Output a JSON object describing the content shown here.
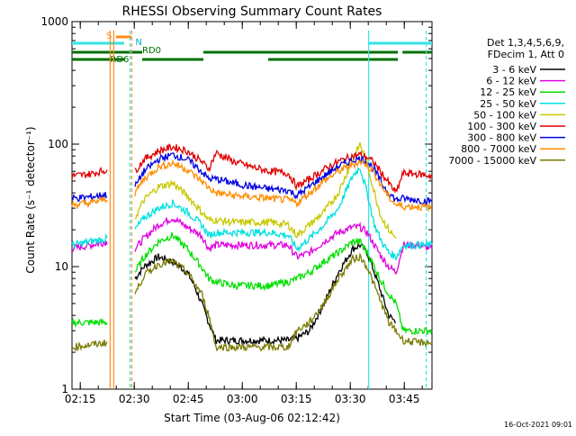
{
  "chart_data": {
    "type": "line",
    "title": "RHESSI Observing Summary Count Rates",
    "xlabel": "Start Time (03-Aug-06 02:12:42)",
    "ylabel": "Count Rate (s⁻¹ detector⁻¹)",
    "yscale": "log",
    "ylim": [
      1,
      1000
    ],
    "xlim_minutes": [
      0,
      100
    ],
    "x_ticks": [
      {
        "minute": 2.3,
        "label": "02:15"
      },
      {
        "minute": 17.3,
        "label": "02:30"
      },
      {
        "minute": 32.3,
        "label": "02:45"
      },
      {
        "minute": 47.3,
        "label": "03:00"
      },
      {
        "minute": 62.3,
        "label": "03:15"
      },
      {
        "minute": 77.3,
        "label": "03:30"
      },
      {
        "minute": 92.3,
        "label": "03:45"
      }
    ],
    "y_ticks": [
      {
        "value": 1,
        "label": "1"
      },
      {
        "value": 10,
        "label": "10"
      },
      {
        "value": 100,
        "label": "100"
      },
      {
        "value": 1000,
        "label": "1000"
      }
    ],
    "legend": {
      "header": [
        "Det 1,3,4,5,6,9,",
        "FDecim 1, Att 0"
      ],
      "placement": "right"
    },
    "annotations": {
      "s_label": "S",
      "n_label": "N",
      "rd0_label": "RD0",
      "rd6_label": "RD6",
      "timestamp": "16-Oct-2021 09:01"
    },
    "status_bars": {
      "saa": [
        {
          "start": 0,
          "end": 14.5
        },
        {
          "start": 82.4,
          "end": 100
        }
      ],
      "flag_s": [
        {
          "start": 12.2,
          "end": 16.5
        }
      ],
      "night": [
        {
          "start": 0,
          "end": 19.5
        },
        {
          "start": 36.5,
          "end": 54.5
        },
        {
          "start": 54.5,
          "end": 90.5
        },
        {
          "start": 91.8,
          "end": 100
        }
      ],
      "night_low": [
        {
          "start": 0,
          "end": 14.5
        },
        {
          "start": 19.5,
          "end": 36.5
        },
        {
          "start": 54.5,
          "end": 62.5
        },
        {
          "start": 62.5,
          "end": 90.5
        }
      ]
    },
    "vertical_markers": [
      {
        "minute": 11.6,
        "color": "#ff8c1a",
        "style": "solid"
      },
      {
        "minute": 10.6,
        "color": "#ff8c1a",
        "style": "solid"
      },
      {
        "minute": 16.1,
        "color": "#33e6e6",
        "style": "dashed"
      },
      {
        "minute": 16.6,
        "color": "#ff8c1a",
        "style": "dashed"
      },
      {
        "minute": 82.4,
        "color": "#33e6e6",
        "style": "solid"
      },
      {
        "minute": 98.4,
        "color": "#33e6e6",
        "style": "dashed"
      }
    ],
    "series": [
      {
        "name": "3 - 6 keV",
        "color": "#000000",
        "points": [
          [
            17.5,
            8
          ],
          [
            20,
            10
          ],
          [
            24,
            12
          ],
          [
            28,
            11
          ],
          [
            32,
            9
          ],
          [
            34,
            7
          ],
          [
            36,
            5
          ],
          [
            38,
            3.5
          ],
          [
            40,
            2.5
          ],
          [
            45,
            2.5
          ],
          [
            50,
            2.5
          ],
          [
            55,
            2.5
          ],
          [
            60,
            2.5
          ],
          [
            62.5,
            2.6
          ],
          [
            66,
            3
          ],
          [
            70,
            5
          ],
          [
            74,
            9
          ],
          [
            78,
            14
          ],
          [
            80,
            15
          ],
          [
            82,
            13
          ],
          [
            84,
            9
          ],
          [
            86,
            6
          ],
          [
            88,
            4
          ],
          [
            90,
            3.5
          ]
        ]
      },
      {
        "name": "6 - 12 keV",
        "color": "#e000e0",
        "points": [
          [
            0,
            14
          ],
          [
            5,
            15
          ],
          [
            10,
            16
          ],
          [
            17.5,
            14
          ],
          [
            20,
            17
          ],
          [
            24,
            22
          ],
          [
            28,
            25
          ],
          [
            32,
            21
          ],
          [
            36,
            18
          ],
          [
            38,
            14
          ],
          [
            40,
            15
          ],
          [
            45,
            15
          ],
          [
            50,
            15
          ],
          [
            55,
            15
          ],
          [
            60,
            15
          ],
          [
            62.5,
            12
          ],
          [
            66,
            13
          ],
          [
            70,
            16
          ],
          [
            74,
            19
          ],
          [
            78,
            21
          ],
          [
            80,
            21
          ],
          [
            82,
            19
          ],
          [
            84,
            15
          ],
          [
            86,
            12
          ],
          [
            88,
            10
          ],
          [
            90,
            9
          ],
          [
            92,
            15
          ],
          [
            96,
            15
          ],
          [
            100,
            14
          ]
        ]
      },
      {
        "name": "12 - 25 keV",
        "color": "#00e000",
        "points": [
          [
            0,
            3.5
          ],
          [
            5,
            3.5
          ],
          [
            10,
            3.5
          ],
          [
            17.5,
            9
          ],
          [
            20,
            12
          ],
          [
            24,
            16
          ],
          [
            28,
            18
          ],
          [
            32,
            14
          ],
          [
            36,
            10
          ],
          [
            38,
            8
          ],
          [
            40,
            7.5
          ],
          [
            45,
            7
          ],
          [
            50,
            7
          ],
          [
            55,
            7
          ],
          [
            60,
            7.5
          ],
          [
            62.5,
            8
          ],
          [
            66,
            9
          ],
          [
            70,
            11
          ],
          [
            74,
            13
          ],
          [
            78,
            16
          ],
          [
            80,
            16
          ],
          [
            82,
            13
          ],
          [
            84,
            10
          ],
          [
            86,
            7.5
          ],
          [
            88,
            6
          ],
          [
            90,
            5
          ],
          [
            92,
            3
          ],
          [
            96,
            3
          ],
          [
            100,
            3
          ]
        ]
      },
      {
        "name": "25 - 50 keV",
        "color": "#00e0e0",
        "points": [
          [
            0,
            15
          ],
          [
            5,
            16
          ],
          [
            10,
            17
          ],
          [
            17.5,
            20
          ],
          [
            20,
            25
          ],
          [
            24,
            30
          ],
          [
            28,
            33
          ],
          [
            32,
            28
          ],
          [
            36,
            22
          ],
          [
            38,
            18
          ],
          [
            40,
            19
          ],
          [
            45,
            19
          ],
          [
            50,
            19
          ],
          [
            55,
            19
          ],
          [
            60,
            18
          ],
          [
            62.5,
            14
          ],
          [
            66,
            17
          ],
          [
            70,
            22
          ],
          [
            74,
            30
          ],
          [
            78,
            55
          ],
          [
            80,
            65
          ],
          [
            82,
            40
          ],
          [
            84,
            22
          ],
          [
            86,
            16
          ],
          [
            88,
            13
          ],
          [
            90,
            12
          ],
          [
            92,
            15
          ],
          [
            96,
            15
          ],
          [
            100,
            15
          ]
        ]
      },
      {
        "name": "50 - 100 keV",
        "color": "#c8c800",
        "points": [
          [
            17.5,
            25
          ],
          [
            20,
            35
          ],
          [
            24,
            45
          ],
          [
            28,
            48
          ],
          [
            32,
            38
          ],
          [
            36,
            28
          ],
          [
            38,
            24
          ],
          [
            40,
            24
          ],
          [
            45,
            23
          ],
          [
            50,
            23
          ],
          [
            55,
            23
          ],
          [
            60,
            22
          ],
          [
            62.5,
            18
          ],
          [
            66,
            22
          ],
          [
            70,
            28
          ],
          [
            74,
            40
          ],
          [
            78,
            75
          ],
          [
            80,
            100
          ],
          [
            82,
            70
          ],
          [
            84,
            40
          ],
          [
            86,
            25
          ],
          [
            88,
            20
          ],
          [
            90,
            17
          ]
        ]
      },
      {
        "name": "100 - 300 keV",
        "color": "#e00000",
        "points": [
          [
            0,
            55
          ],
          [
            5,
            57
          ],
          [
            10,
            62
          ],
          [
            17.5,
            60
          ],
          [
            20,
            75
          ],
          [
            24,
            88
          ],
          [
            28,
            95
          ],
          [
            32,
            88
          ],
          [
            36,
            72
          ],
          [
            38,
            63
          ],
          [
            40,
            85
          ],
          [
            45,
            72
          ],
          [
            50,
            65
          ],
          [
            55,
            60
          ],
          [
            60,
            58
          ],
          [
            62.5,
            45
          ],
          [
            66,
            52
          ],
          [
            70,
            62
          ],
          [
            74,
            72
          ],
          [
            78,
            80
          ],
          [
            80,
            82
          ],
          [
            82,
            78
          ],
          [
            84,
            70
          ],
          [
            86,
            58
          ],
          [
            88,
            48
          ],
          [
            90,
            40
          ],
          [
            92,
            58
          ],
          [
            96,
            57
          ],
          [
            100,
            55
          ]
        ]
      },
      {
        "name": "300 - 800 keV",
        "color": "#0000e0",
        "points": [
          [
            0,
            36
          ],
          [
            5,
            37
          ],
          [
            10,
            39
          ],
          [
            17.5,
            45
          ],
          [
            20,
            60
          ],
          [
            24,
            75
          ],
          [
            28,
            82
          ],
          [
            32,
            75
          ],
          [
            36,
            60
          ],
          [
            38,
            52
          ],
          [
            40,
            52
          ],
          [
            45,
            48
          ],
          [
            50,
            45
          ],
          [
            55,
            43
          ],
          [
            60,
            42
          ],
          [
            62.5,
            38
          ],
          [
            66,
            45
          ],
          [
            70,
            55
          ],
          [
            74,
            66
          ],
          [
            78,
            74
          ],
          [
            80,
            76
          ],
          [
            82,
            72
          ],
          [
            84,
            62
          ],
          [
            86,
            48
          ],
          [
            88,
            40
          ],
          [
            90,
            35
          ],
          [
            92,
            36
          ],
          [
            96,
            35
          ],
          [
            100,
            34
          ]
        ]
      },
      {
        "name": "800 - 7000 keV",
        "color": "#ff8c00",
        "points": [
          [
            0,
            32
          ],
          [
            5,
            33
          ],
          [
            10,
            36
          ],
          [
            17.5,
            40
          ],
          [
            20,
            52
          ],
          [
            24,
            65
          ],
          [
            28,
            70
          ],
          [
            32,
            62
          ],
          [
            36,
            50
          ],
          [
            38,
            44
          ],
          [
            40,
            40
          ],
          [
            45,
            38
          ],
          [
            50,
            37
          ],
          [
            55,
            36
          ],
          [
            60,
            35
          ],
          [
            62.5,
            33
          ],
          [
            66,
            40
          ],
          [
            70,
            50
          ],
          [
            74,
            60
          ],
          [
            78,
            68
          ],
          [
            80,
            72
          ],
          [
            82,
            68
          ],
          [
            84,
            58
          ],
          [
            86,
            45
          ],
          [
            88,
            37
          ],
          [
            90,
            32
          ],
          [
            92,
            31
          ],
          [
            96,
            31
          ],
          [
            100,
            30
          ]
        ]
      },
      {
        "name": "7000 - 15000 keV",
        "color": "#7a7a00",
        "points": [
          [
            0,
            2.2
          ],
          [
            5,
            2.3
          ],
          [
            10,
            2.4
          ],
          [
            17.5,
            6
          ],
          [
            20,
            8.5
          ],
          [
            24,
            10.5
          ],
          [
            28,
            11
          ],
          [
            32,
            9
          ],
          [
            36,
            6
          ],
          [
            38,
            4
          ],
          [
            40,
            2.2
          ],
          [
            45,
            2.2
          ],
          [
            50,
            2.2
          ],
          [
            55,
            2.2
          ],
          [
            60,
            2.2
          ],
          [
            62.5,
            3
          ],
          [
            66,
            3.5
          ],
          [
            70,
            5
          ],
          [
            74,
            8
          ],
          [
            78,
            11.5
          ],
          [
            80,
            12
          ],
          [
            82,
            10
          ],
          [
            84,
            7
          ],
          [
            86,
            5
          ],
          [
            88,
            3.5
          ],
          [
            90,
            3
          ],
          [
            92,
            2.5
          ],
          [
            96,
            2.4
          ],
          [
            100,
            2.4
          ]
        ]
      }
    ]
  }
}
